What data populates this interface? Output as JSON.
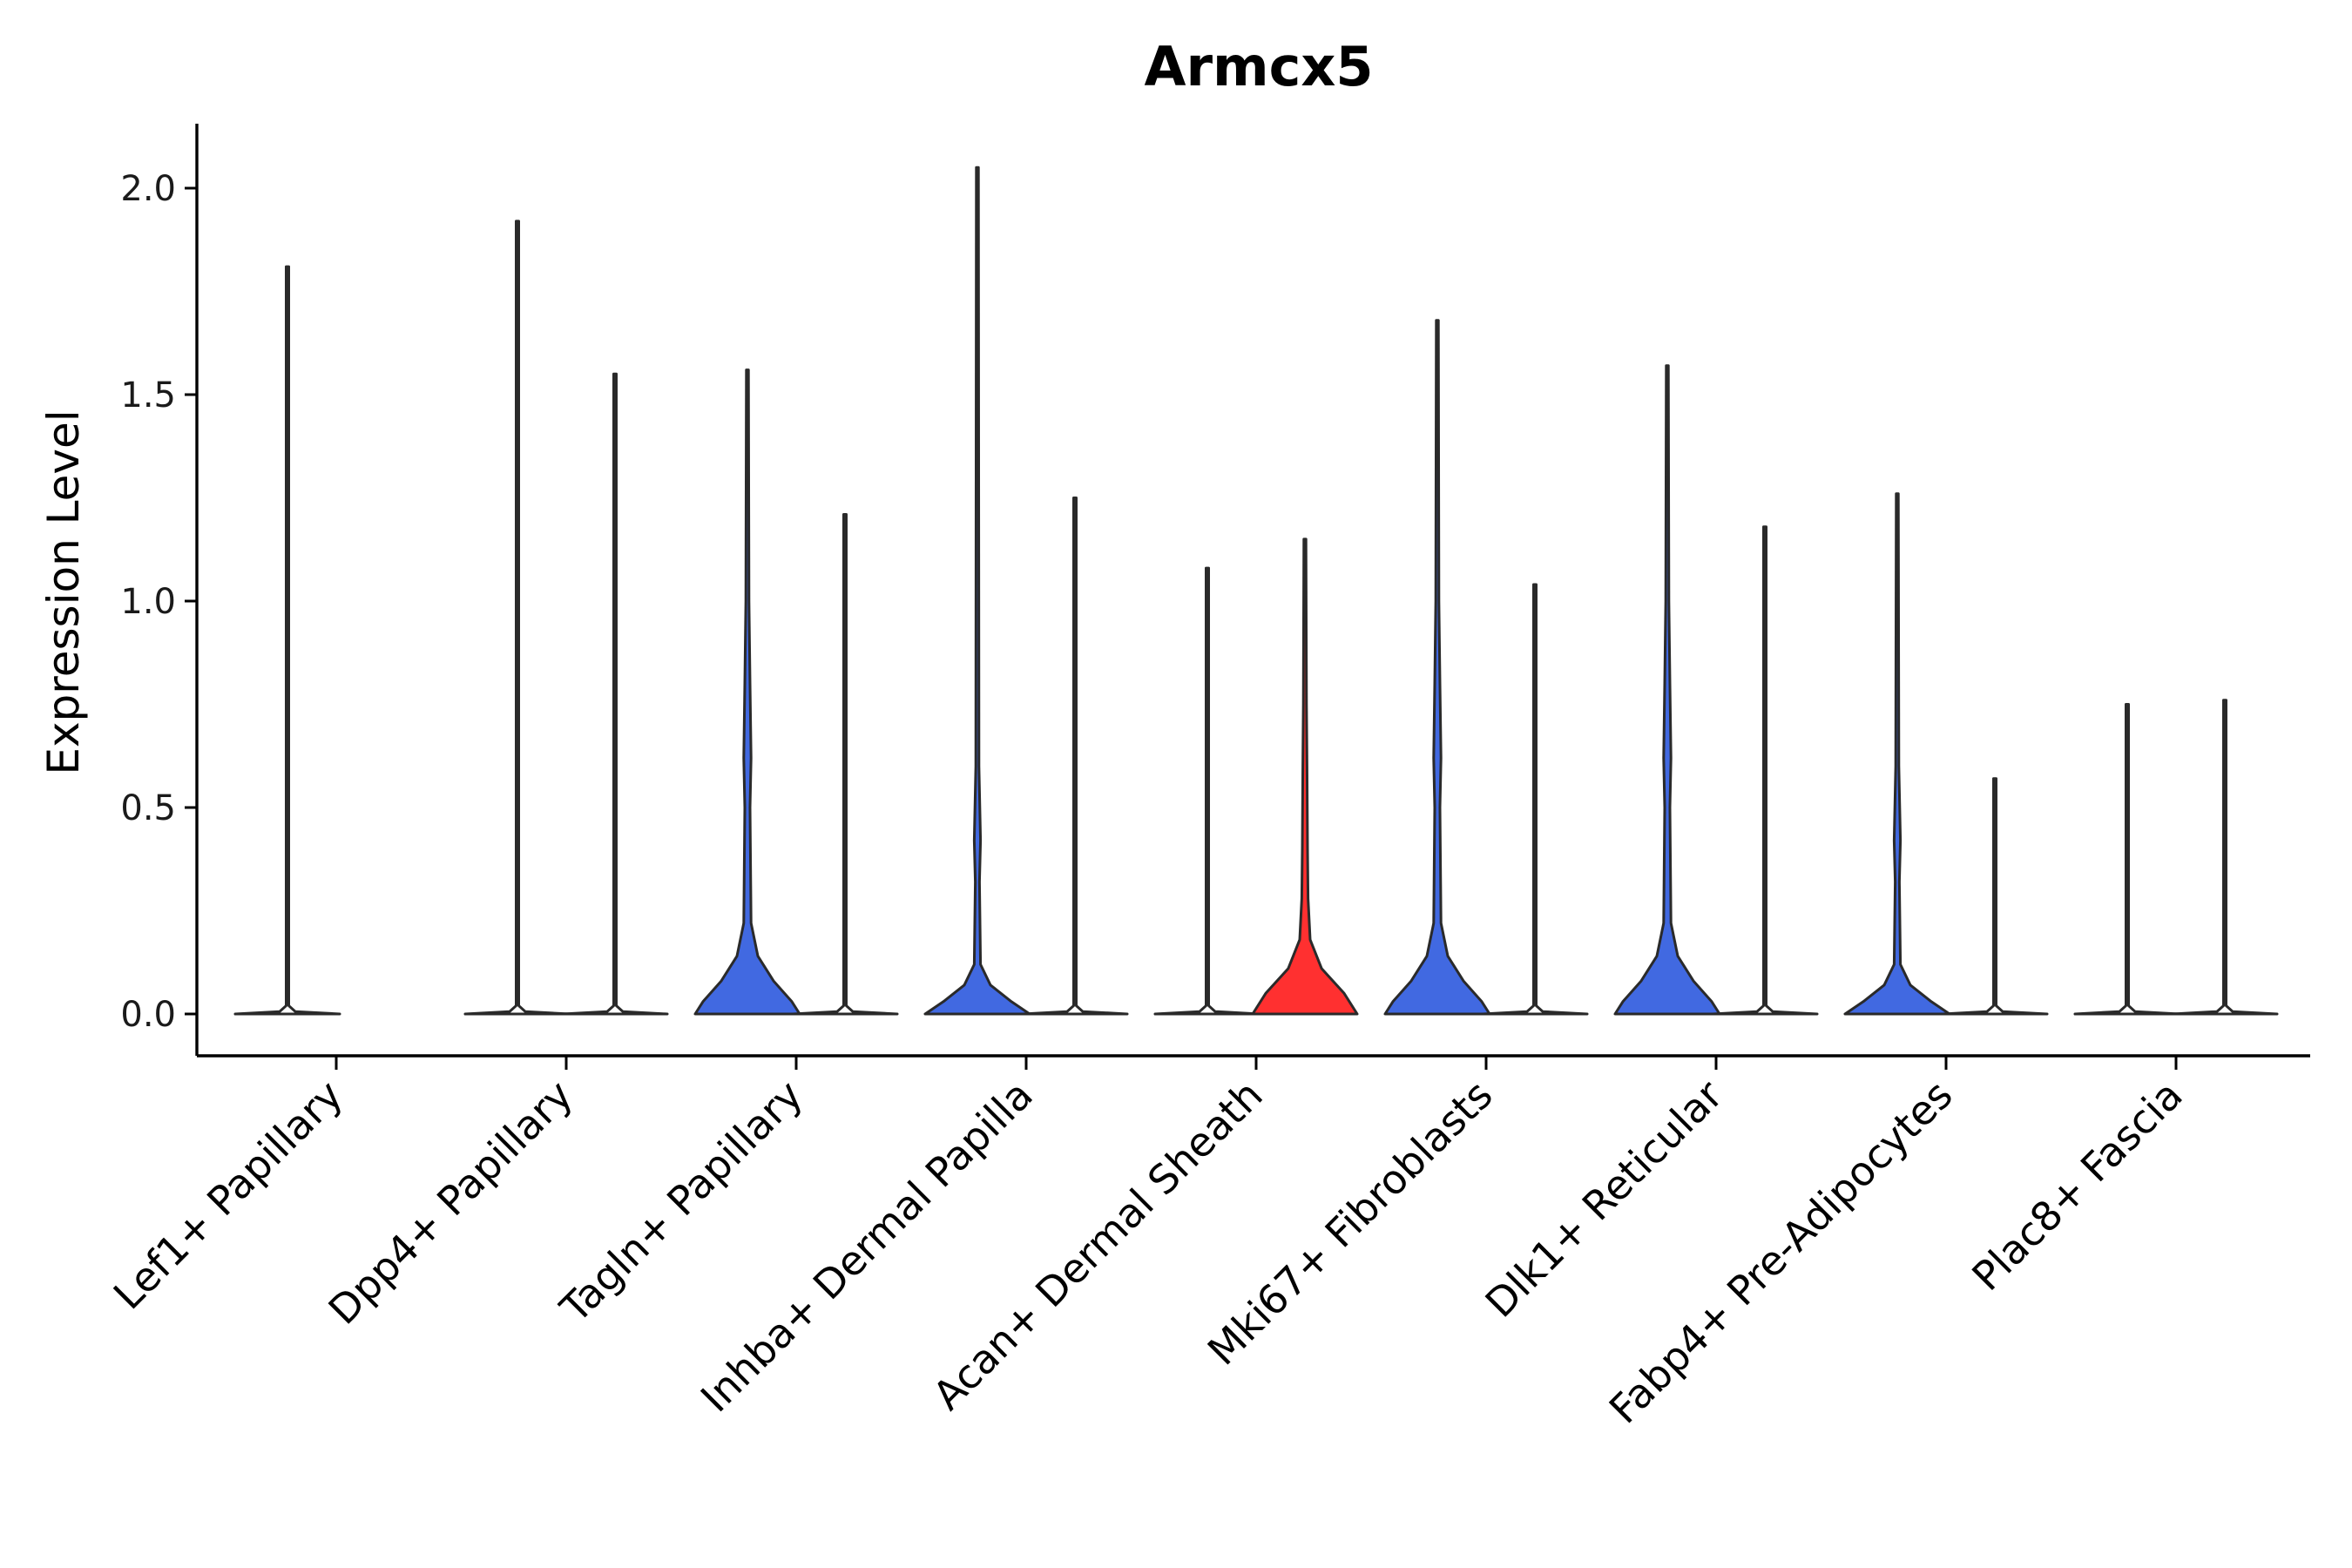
{
  "chart_data": {
    "type": "violin",
    "title": "Armcx5",
    "xlabel": "",
    "ylabel": "Expression Level",
    "ylim": [
      -0.1,
      2.15
    ],
    "yticks": [
      "0.0",
      "0.5",
      "1.0",
      "1.5",
      "2.0"
    ],
    "colors": {
      "group_a": "#4169e1",
      "group_b": "#ff3030",
      "outline": "#2a2a2a",
      "zero": "#ffffff"
    },
    "categories": [
      "Lef1+ Papillary",
      "Dpp4+ Papillary",
      "Tagln+ Papillary",
      "Inhba+ Dermal Papilla",
      "Acan+ Dermal Sheath",
      "Mki67+ Fibroblasts",
      "Dlk1+ Reticular",
      "Fabp4+ Pre-Adipocytes",
      "Plac8+ Fascia"
    ],
    "series": [
      {
        "name": "group_a",
        "color": "#4169e1",
        "max": [
          1.81,
          1.92,
          1.56,
          2.05,
          1.08,
          1.68,
          1.57,
          1.26,
          0.75
        ],
        "profile": [
          "flat",
          "flat",
          "bulb",
          "bulb_small",
          "flat",
          "bulb",
          "bulb",
          "bulb_small",
          "flat"
        ]
      },
      {
        "name": "group_b",
        "color": "#ff3030",
        "max": [
          null,
          1.55,
          1.21,
          1.25,
          1.15,
          1.04,
          1.18,
          0.57,
          0.76
        ],
        "profile": [
          "none",
          "flat",
          "flat",
          "flat",
          "red_bulb",
          "flat",
          "flat",
          "flat",
          "flat"
        ]
      }
    ]
  }
}
